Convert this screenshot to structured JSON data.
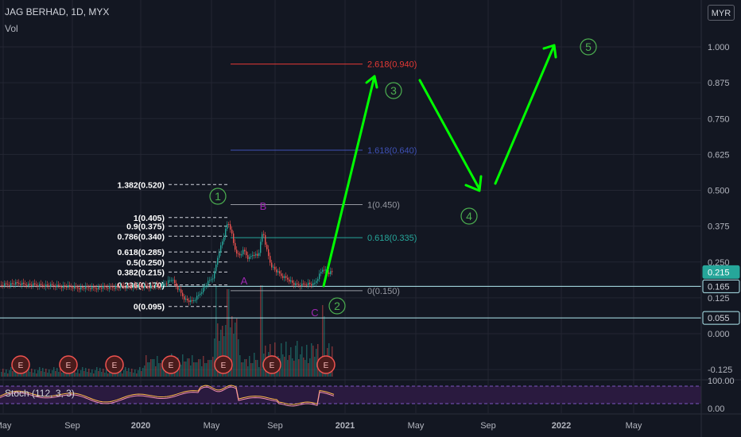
{
  "header": {
    "symbol": "JAG BERHAD, 1D, MYX",
    "volume_label": "Vol"
  },
  "currency_button": "MYR",
  "stoch_label": "Stoch (112, 3, 3)",
  "colors": {
    "bg": "#131722",
    "grid": "#232632",
    "up": "#26a69a",
    "down": "#ef5350",
    "wave": "#00ff00",
    "wave_label": "#4caf50",
    "abc": "#9c27b0",
    "fib_red": "#e53935",
    "fib_blue": "#3f51b5",
    "fib_teal": "#26a69a",
    "fib_gray": "#9598a1",
    "level": "#b2ebf2",
    "stoch_bg": "#2a1a3f",
    "stoch_line": "#f48fb1"
  },
  "chart_data": {
    "type": "candlestick",
    "title": "JAG BERHAD, 1D, MYX",
    "price_axis": {
      "ticks": [
        -0.125,
        0.0,
        0.125,
        0.25,
        0.375,
        0.5,
        0.625,
        0.75,
        0.875,
        1.0
      ],
      "tick_labels": [
        "-0.125",
        "0.000",
        "0.125",
        "0.250",
        "0.375",
        "0.500",
        "0.625",
        "0.750",
        "0.875",
        "1.000"
      ]
    },
    "time_axis": {
      "labels": [
        "May",
        "Sep",
        "2020",
        "May",
        "Sep",
        "2021",
        "May",
        "Sep",
        "2022",
        "May"
      ]
    },
    "price_tags": [
      {
        "label": "0.215",
        "value": 0.215,
        "style": "teal"
      },
      {
        "label": "0.165",
        "value": 0.165,
        "style": "outline"
      },
      {
        "label": "0.055",
        "value": 0.055,
        "style": "outline"
      }
    ],
    "horizontal_levels": [
      0.165,
      0.055
    ],
    "fib_retracement_left": [
      {
        "label": "1.382(0.520)",
        "value": 0.52
      },
      {
        "label": "1(0.405)",
        "value": 0.405
      },
      {
        "label": "0.9(0.375)",
        "value": 0.375
      },
      {
        "label": "0.786(0.340)",
        "value": 0.34
      },
      {
        "label": "0.618(0.285)",
        "value": 0.285
      },
      {
        "label": "0.5(0.250)",
        "value": 0.25
      },
      {
        "label": "0.382(0.215)",
        "value": 0.215
      },
      {
        "label": "0.236(0.170)",
        "value": 0.17
      },
      {
        "label": "0(0.095)",
        "value": 0.095
      }
    ],
    "fib_extension_right": [
      {
        "label": "2.618(0.940)",
        "value": 0.94,
        "color": "red"
      },
      {
        "label": "1.618(0.640)",
        "value": 0.64,
        "color": "blue"
      },
      {
        "label": "1(0.450)",
        "value": 0.45,
        "color": "gray"
      },
      {
        "label": "0.618(0.335)",
        "value": 0.335,
        "color": "teal"
      },
      {
        "label": "0(0.150)",
        "value": 0.15,
        "color": "gray"
      }
    ],
    "wave_labels": [
      "1",
      "2",
      "3",
      "4",
      "5"
    ],
    "abc_labels": [
      "A",
      "B",
      "C"
    ],
    "earnings_marker": "E",
    "earnings_count": 7,
    "stoch": {
      "ticks": [
        "100.00",
        "0.00"
      ]
    }
  }
}
